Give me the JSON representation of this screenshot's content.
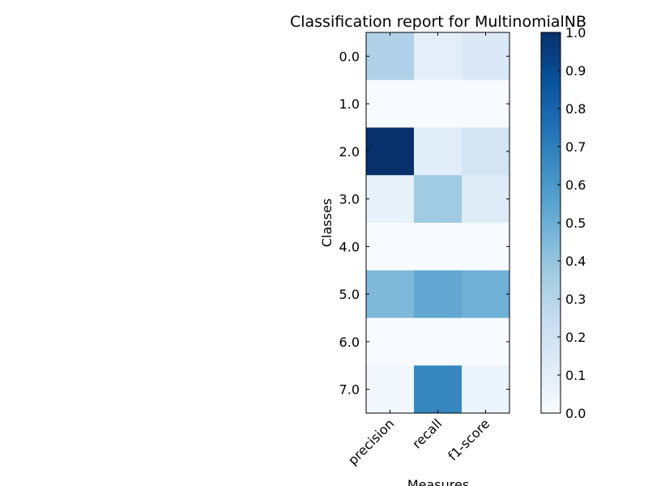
{
  "chart_data": {
    "type": "heatmap",
    "title": "Classification report for MultinomialNB",
    "xlabel": "Measures",
    "ylabel": "Classes",
    "x_categories": [
      "precision",
      "recall",
      "f1-score"
    ],
    "y_categories": [
      "0.0",
      "1.0",
      "2.0",
      "3.0",
      "4.0",
      "5.0",
      "6.0",
      "7.0"
    ],
    "values": [
      [
        0.32,
        0.1,
        0.14
      ],
      [
        0.0,
        0.0,
        0.0
      ],
      [
        1.0,
        0.11,
        0.18
      ],
      [
        0.08,
        0.37,
        0.12
      ],
      [
        0.0,
        0.0,
        0.0
      ],
      [
        0.45,
        0.53,
        0.49
      ],
      [
        0.0,
        0.0,
        0.0
      ],
      [
        0.03,
        0.67,
        0.06
      ]
    ],
    "colormap": "Blues",
    "vmin": 0.0,
    "vmax": 1.0,
    "colorbar_ticks": [
      "0.0",
      "0.1",
      "0.2",
      "0.3",
      "0.4",
      "0.5",
      "0.6",
      "0.7",
      "0.8",
      "0.9",
      "1.0"
    ],
    "grid": false
  }
}
